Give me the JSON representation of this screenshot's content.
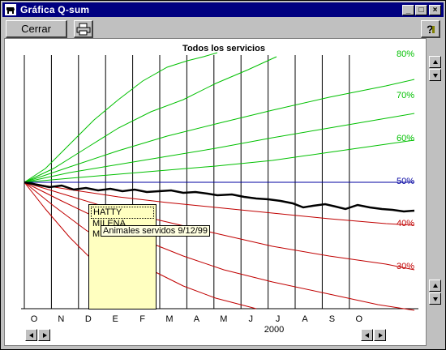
{
  "window": {
    "title": "Gráfica Q-sum",
    "icon": "cow-icon"
  },
  "toolbar": {
    "close_label": "Cerrar",
    "print_icon": "printer-icon",
    "help_icon": "help-icon"
  },
  "chart_data": {
    "type": "line",
    "title": "Todos los servicios",
    "x_ticks": [
      "O",
      "N",
      "D",
      "E",
      "F",
      "M",
      "A",
      "M",
      "J",
      "J",
      "A",
      "S",
      "O"
    ],
    "x_year_label": "2000",
    "percent_labels": [
      {
        "label": "80%",
        "color": "#00c000"
      },
      {
        "label": "70%",
        "color": "#00c000"
      },
      {
        "label": "60%",
        "color": "#00c000"
      },
      {
        "label": "50%",
        "color": "#0000a0"
      },
      {
        "label": "40%",
        "color": "#c00000"
      },
      {
        "label": "30%",
        "color": "#c00000"
      }
    ],
    "grid": "vertical",
    "series": [
      {
        "color": "#000000",
        "role": "qsum"
      },
      {
        "color": "#0000a0",
        "role": "reference"
      },
      {
        "color": "#00c000",
        "role": "upper-limits"
      },
      {
        "color": "#c00000",
        "role": "lower-limits"
      }
    ]
  },
  "tooltip_list": {
    "items": [
      "HATTY",
      "MILENA",
      "MI"
    ]
  },
  "tooltip": {
    "text": "Animales servidos 9/12/99"
  }
}
